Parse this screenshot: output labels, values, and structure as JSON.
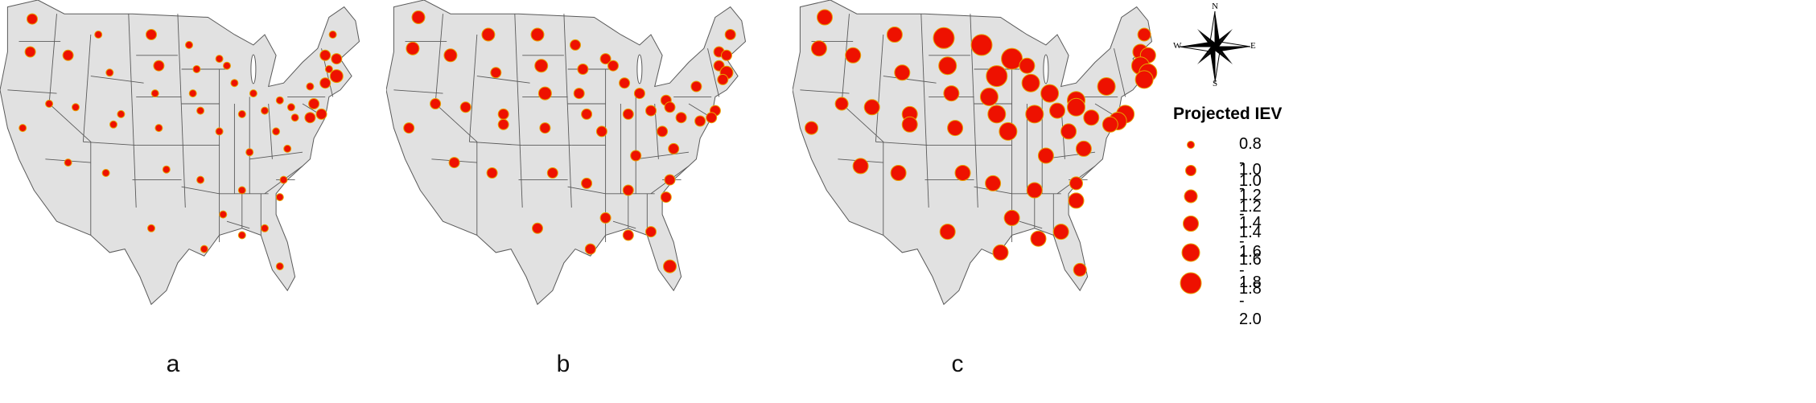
{
  "panels": [
    {
      "label": "a",
      "circles": [
        [
          0.085,
          0.055,
          2
        ],
        [
          0.26,
          0.1,
          1
        ],
        [
          0.4,
          0.1,
          2
        ],
        [
          0.5,
          0.13,
          1
        ],
        [
          0.58,
          0.17,
          1
        ],
        [
          0.08,
          0.15,
          2
        ],
        [
          0.18,
          0.16,
          2
        ],
        [
          0.29,
          0.21,
          1
        ],
        [
          0.42,
          0.19,
          2
        ],
        [
          0.52,
          0.2,
          1
        ],
        [
          0.6,
          0.19,
          1
        ],
        [
          0.88,
          0.1,
          1
        ],
        [
          0.86,
          0.16,
          2
        ],
        [
          0.89,
          0.17,
          2
        ],
        [
          0.87,
          0.2,
          1
        ],
        [
          0.89,
          0.22,
          3
        ],
        [
          0.86,
          0.24,
          2
        ],
        [
          0.13,
          0.3,
          1
        ],
        [
          0.2,
          0.31,
          1
        ],
        [
          0.32,
          0.33,
          1
        ],
        [
          0.41,
          0.27,
          1
        ],
        [
          0.51,
          0.27,
          1
        ],
        [
          0.62,
          0.24,
          1
        ],
        [
          0.67,
          0.27,
          1
        ],
        [
          0.74,
          0.29,
          1
        ],
        [
          0.82,
          0.25,
          1
        ],
        [
          0.06,
          0.37,
          1
        ],
        [
          0.3,
          0.36,
          1
        ],
        [
          0.42,
          0.37,
          1
        ],
        [
          0.53,
          0.32,
          1
        ],
        [
          0.58,
          0.38,
          1
        ],
        [
          0.64,
          0.33,
          1
        ],
        [
          0.7,
          0.32,
          1
        ],
        [
          0.78,
          0.34,
          1
        ],
        [
          0.83,
          0.3,
          2
        ],
        [
          0.85,
          0.33,
          2
        ],
        [
          0.82,
          0.34,
          2
        ],
        [
          0.77,
          0.31,
          1
        ],
        [
          0.66,
          0.44,
          1
        ],
        [
          0.73,
          0.38,
          1
        ],
        [
          0.76,
          0.43,
          1
        ],
        [
          0.18,
          0.47,
          1
        ],
        [
          0.28,
          0.5,
          1
        ],
        [
          0.44,
          0.49,
          1
        ],
        [
          0.53,
          0.52,
          1
        ],
        [
          0.64,
          0.55,
          1
        ],
        [
          0.75,
          0.52,
          1
        ],
        [
          0.74,
          0.57,
          1
        ],
        [
          0.4,
          0.66,
          1
        ],
        [
          0.59,
          0.62,
          1
        ],
        [
          0.54,
          0.72,
          1
        ],
        [
          0.64,
          0.68,
          1
        ],
        [
          0.7,
          0.66,
          1
        ],
        [
          0.74,
          0.77,
          1
        ]
      ]
    },
    {
      "label": "b",
      "circles": [
        [
          0.085,
          0.05,
          3
        ],
        [
          0.27,
          0.1,
          3
        ],
        [
          0.4,
          0.1,
          3
        ],
        [
          0.5,
          0.13,
          2
        ],
        [
          0.58,
          0.17,
          2
        ],
        [
          0.07,
          0.14,
          3
        ],
        [
          0.17,
          0.16,
          3
        ],
        [
          0.29,
          0.21,
          2
        ],
        [
          0.41,
          0.19,
          3
        ],
        [
          0.52,
          0.2,
          2
        ],
        [
          0.6,
          0.19,
          2
        ],
        [
          0.91,
          0.1,
          2
        ],
        [
          0.88,
          0.15,
          2
        ],
        [
          0.9,
          0.16,
          2
        ],
        [
          0.88,
          0.19,
          2
        ],
        [
          0.9,
          0.21,
          3
        ],
        [
          0.89,
          0.23,
          2
        ],
        [
          0.13,
          0.3,
          2
        ],
        [
          0.21,
          0.31,
          2
        ],
        [
          0.31,
          0.33,
          2
        ],
        [
          0.42,
          0.27,
          3
        ],
        [
          0.51,
          0.27,
          2
        ],
        [
          0.63,
          0.24,
          2
        ],
        [
          0.67,
          0.27,
          2
        ],
        [
          0.74,
          0.29,
          2
        ],
        [
          0.82,
          0.25,
          2
        ],
        [
          0.06,
          0.37,
          2
        ],
        [
          0.31,
          0.36,
          2
        ],
        [
          0.42,
          0.37,
          2
        ],
        [
          0.53,
          0.33,
          2
        ],
        [
          0.57,
          0.38,
          2
        ],
        [
          0.64,
          0.33,
          2
        ],
        [
          0.7,
          0.32,
          2
        ],
        [
          0.78,
          0.34,
          2
        ],
        [
          0.87,
          0.32,
          2
        ],
        [
          0.86,
          0.34,
          2
        ],
        [
          0.83,
          0.35,
          2
        ],
        [
          0.75,
          0.31,
          2
        ],
        [
          0.66,
          0.45,
          2
        ],
        [
          0.73,
          0.38,
          2
        ],
        [
          0.76,
          0.43,
          2
        ],
        [
          0.18,
          0.47,
          2
        ],
        [
          0.28,
          0.5,
          2
        ],
        [
          0.44,
          0.5,
          2
        ],
        [
          0.53,
          0.53,
          2
        ],
        [
          0.64,
          0.55,
          2
        ],
        [
          0.75,
          0.52,
          2
        ],
        [
          0.74,
          0.57,
          2
        ],
        [
          0.4,
          0.66,
          2
        ],
        [
          0.58,
          0.63,
          2
        ],
        [
          0.54,
          0.72,
          2
        ],
        [
          0.64,
          0.68,
          2
        ],
        [
          0.7,
          0.67,
          2
        ],
        [
          0.75,
          0.77,
          3
        ]
      ]
    },
    {
      "label": "c",
      "circles": [
        [
          0.085,
          0.05,
          4
        ],
        [
          0.27,
          0.1,
          4
        ],
        [
          0.4,
          0.11,
          6
        ],
        [
          0.5,
          0.13,
          6
        ],
        [
          0.58,
          0.17,
          6
        ],
        [
          0.07,
          0.14,
          4
        ],
        [
          0.16,
          0.16,
          4
        ],
        [
          0.29,
          0.21,
          4
        ],
        [
          0.41,
          0.19,
          5
        ],
        [
          0.54,
          0.22,
          6
        ],
        [
          0.62,
          0.19,
          4
        ],
        [
          0.93,
          0.1,
          3
        ],
        [
          0.92,
          0.15,
          4
        ],
        [
          0.94,
          0.16,
          4
        ],
        [
          0.92,
          0.19,
          5
        ],
        [
          0.94,
          0.21,
          5
        ],
        [
          0.93,
          0.23,
          5
        ],
        [
          0.13,
          0.3,
          3
        ],
        [
          0.21,
          0.31,
          4
        ],
        [
          0.31,
          0.33,
          4
        ],
        [
          0.42,
          0.27,
          4
        ],
        [
          0.52,
          0.28,
          5
        ],
        [
          0.63,
          0.24,
          5
        ],
        [
          0.68,
          0.27,
          5
        ],
        [
          0.75,
          0.29,
          5
        ],
        [
          0.83,
          0.25,
          5
        ],
        [
          0.05,
          0.37,
          3
        ],
        [
          0.31,
          0.36,
          4
        ],
        [
          0.43,
          0.37,
          4
        ],
        [
          0.54,
          0.33,
          5
        ],
        [
          0.57,
          0.38,
          5
        ],
        [
          0.64,
          0.33,
          5
        ],
        [
          0.7,
          0.32,
          4
        ],
        [
          0.79,
          0.34,
          4
        ],
        [
          0.88,
          0.33,
          5
        ],
        [
          0.86,
          0.35,
          5
        ],
        [
          0.84,
          0.36,
          4
        ],
        [
          0.75,
          0.31,
          5
        ],
        [
          0.67,
          0.45,
          4
        ],
        [
          0.73,
          0.38,
          4
        ],
        [
          0.77,
          0.43,
          4
        ],
        [
          0.18,
          0.48,
          4
        ],
        [
          0.28,
          0.5,
          4
        ],
        [
          0.45,
          0.5,
          4
        ],
        [
          0.53,
          0.53,
          4
        ],
        [
          0.64,
          0.55,
          4
        ],
        [
          0.75,
          0.53,
          3
        ],
        [
          0.75,
          0.58,
          4
        ],
        [
          0.41,
          0.67,
          4
        ],
        [
          0.58,
          0.63,
          4
        ],
        [
          0.55,
          0.73,
          4
        ],
        [
          0.65,
          0.69,
          4
        ],
        [
          0.71,
          0.67,
          4
        ],
        [
          0.76,
          0.78,
          3
        ]
      ]
    }
  ],
  "legend": {
    "title": "Projected IEV",
    "classes": [
      "0.8 - 1.0",
      "1.0 - 1.2",
      "1.2 - 1.4",
      "1.4 - 1.6",
      "1.6 - 1.8",
      "1.8 - 2.0"
    ]
  },
  "compass": {
    "n": "N",
    "s": "S",
    "e": "E",
    "w": "W"
  },
  "colors": {
    "land": "#e1e1e1",
    "border": "#5a5a5a",
    "symbol": "#ee1100",
    "symbol_outline": "#e6a300"
  }
}
